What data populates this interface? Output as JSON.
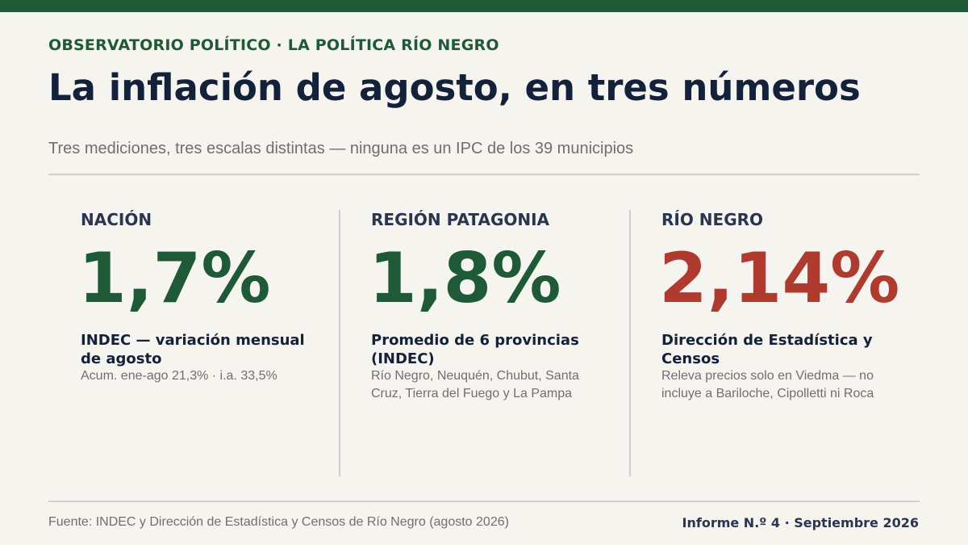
{
  "header": {
    "kicker": "OBSERVATORIO POLÍTICO · LA POLÍTICA RÍO NEGRO",
    "title": "La inflación de agosto, en tres números",
    "subtitle": "Tres mediciones, tres escalas distintas — ninguna es un IPC de los 39 municipios"
  },
  "colors": {
    "brand_green": "#1e5a38",
    "highlight_red": "#b03a2e",
    "dark_text": "#14213a",
    "muted_text": "#6f6f6f"
  },
  "metrics": [
    {
      "label": "NACIÓN",
      "value": "1,7%",
      "color": "#1e5a38",
      "description": "INDEC — variación mensual de agosto",
      "note": "Acum. ene-ago 21,3% · i.a. 33,5%"
    },
    {
      "label": "REGIÓN PATAGONIA",
      "value": "1,8%",
      "color": "#1e5a38",
      "description": "Promedio de 6 provincias (INDEC)",
      "note": "Río Negro, Neuquén, Chubut, Santa Cruz, Tierra del Fuego y La Pampa"
    },
    {
      "label": "RÍO NEGRO",
      "value": "2,14%",
      "color": "#b03a2e",
      "description": "Dirección de Estadística y Censos",
      "note": "Releva precios solo en Viedma — no incluye a Bariloche, Cipolletti ni Roca"
    }
  ],
  "footer": {
    "source": "Fuente: INDEC y Dirección de Estadística y Censos de Río Negro (agosto 2026)",
    "issue": "Informe N.º 4 · Septiembre 2026"
  }
}
